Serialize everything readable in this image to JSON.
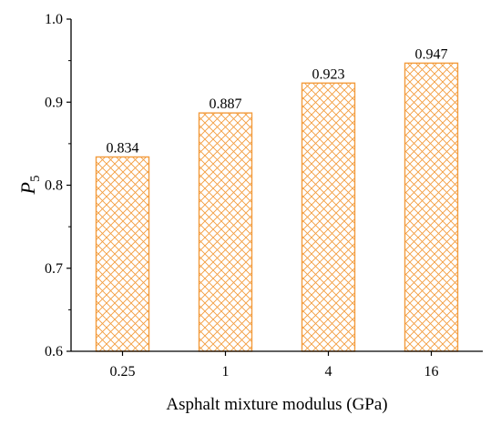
{
  "chart_data": {
    "type": "bar",
    "categories": [
      "0.25",
      "1",
      "4",
      "16"
    ],
    "values": [
      0.834,
      0.887,
      0.923,
      0.947
    ],
    "data_labels": [
      "0.834",
      "0.887",
      "0.923",
      "0.947"
    ],
    "title": "",
    "xlabel": "Asphalt mixture modulus (GPa)",
    "ylabel": {
      "main": "P",
      "subscript": "5"
    },
    "ylim": [
      0.6,
      1.0
    ],
    "yticks": [
      "0.6",
      "0.7",
      "0.8",
      "0.9",
      "1.0"
    ],
    "grid": false,
    "legend": "none",
    "bar_fill": "crosshatch",
    "colors": {
      "bar": "#F39C3E",
      "axis": "#000000"
    }
  }
}
